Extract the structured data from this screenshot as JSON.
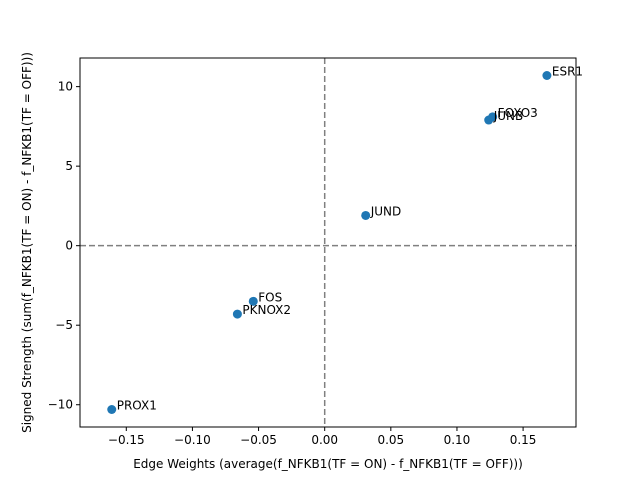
{
  "chart_data": {
    "type": "scatter",
    "title": "",
    "xlabel": "Edge Weights (average(f_NFKB1(TF = ON) - f_NFKB1(TF = OFF)))",
    "ylabel": "Signed Strength (sum(f_NFKB1(TF = ON) - f_NFKB1(TF = OFF)))",
    "xlim": [
      -0.185,
      0.19
    ],
    "ylim": [
      -11.4,
      11.8
    ],
    "xticks": [
      -0.15,
      -0.1,
      -0.05,
      0.0,
      0.05,
      0.1,
      0.15
    ],
    "xtick_labels": [
      "−0.15",
      "−0.10",
      "−0.05",
      "0.00",
      "0.05",
      "0.10",
      "0.15"
    ],
    "yticks": [
      -10,
      -5,
      0,
      5,
      10
    ],
    "ytick_labels": [
      "−10",
      "−5",
      "0",
      "5",
      "10"
    ],
    "grid": false,
    "reference_lines": [
      {
        "axis": "x",
        "value": 0,
        "style": "dashed"
      },
      {
        "axis": "y",
        "value": 0,
        "style": "dashed"
      }
    ],
    "marker_color": "#1f77b4",
    "points": [
      {
        "label": "ESR1",
        "x": 0.168,
        "y": 10.7
      },
      {
        "label": "FOXO3",
        "x": 0.127,
        "y": 8.1
      },
      {
        "label": "JUNB",
        "x": 0.124,
        "y": 7.9
      },
      {
        "label": "JUND",
        "x": 0.031,
        "y": 1.9
      },
      {
        "label": "FOS",
        "x": -0.054,
        "y": -3.5
      },
      {
        "label": "PKNOX2",
        "x": -0.066,
        "y": -4.3
      },
      {
        "label": "PROX1",
        "x": -0.161,
        "y": -10.3
      }
    ]
  }
}
